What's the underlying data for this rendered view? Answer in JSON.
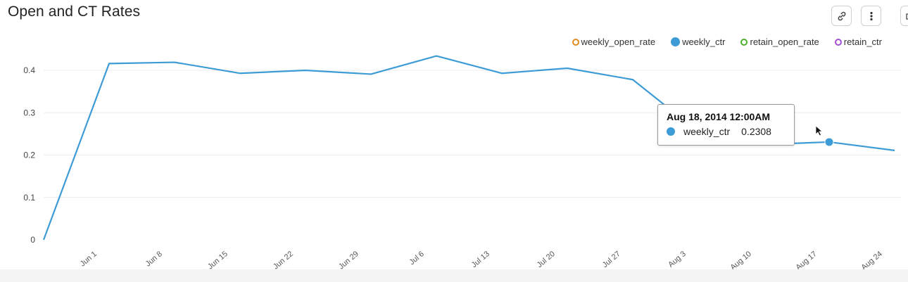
{
  "panel": {
    "title": "Open and CT Rates"
  },
  "toolbar": {
    "link_icon": "link-icon",
    "more_icon": "more-vertical-icon",
    "partial_icon": "save-icon"
  },
  "legend": [
    {
      "name": "weekly_open_rate",
      "color": "#e08a1e",
      "style": "hollow"
    },
    {
      "name": "weekly_ctr",
      "color": "#3d9bd6",
      "style": "filled"
    },
    {
      "name": "retain_open_rate",
      "color": "#4caf2a",
      "style": "hollow"
    },
    {
      "name": "retain_ctr",
      "color": "#a34fd1",
      "style": "hollow"
    }
  ],
  "tooltip": {
    "title": "Aug 18, 2014 12:00AM",
    "series": "weekly_ctr",
    "value": "0.2308",
    "color": "#3d9bd6"
  },
  "chart_data": {
    "type": "line",
    "x_labels": [
      "Jun 1",
      "Jun 8",
      "Jun 15",
      "Jun 22",
      "Jun 29",
      "Jul 6",
      "Jul 13",
      "Jul 20",
      "Jul 27",
      "Aug 3",
      "Aug 10",
      "Aug 17",
      "Aug 24"
    ],
    "y_ticks": [
      "0",
      "0.1",
      "0.2",
      "0.3",
      "0.4"
    ],
    "ylim": [
      0,
      0.45
    ],
    "grid": true,
    "legend_position": "top-right",
    "series": [
      {
        "name": "weekly_ctr",
        "color": "#3d9bd6",
        "x": [
          "May 26",
          "Jun 2",
          "Jun 9",
          "Jun 16",
          "Jun 23",
          "Jun 30",
          "Jul 7",
          "Jul 14",
          "Jul 21",
          "Jul 28",
          "Aug 4",
          "Aug 11",
          "Aug 18",
          "Aug 25"
        ],
        "values": [
          0,
          0.416,
          0.419,
          0.393,
          0.4,
          0.391,
          0.434,
          0.393,
          0.405,
          0.378,
          0.255,
          0.225,
          0.2308,
          0.211
        ]
      }
    ],
    "highlight": {
      "series": "weekly_ctr",
      "x": "Aug 18",
      "value": 0.2308
    }
  }
}
